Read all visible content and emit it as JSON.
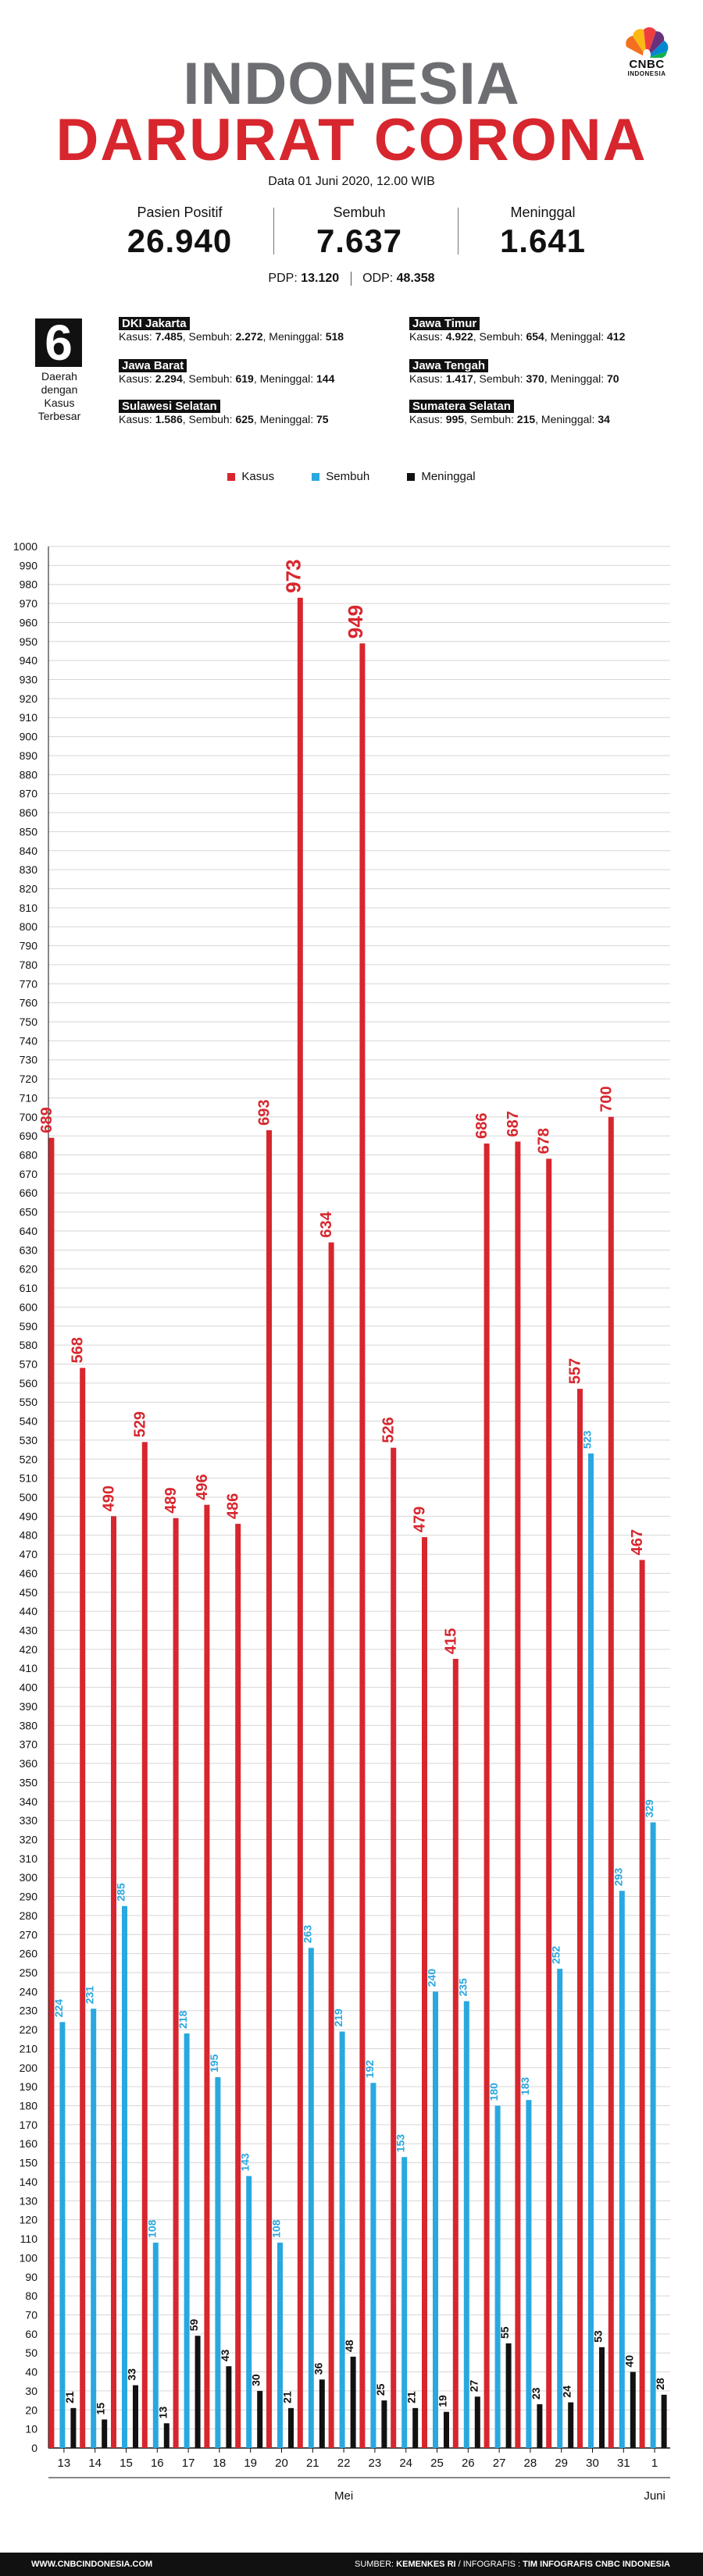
{
  "brand": {
    "name": "CNBC",
    "sub": "INDONESIA"
  },
  "title_line1": "INDONESIA",
  "title_line2": "DARURAT CORONA",
  "date": "Data 01 Juni 2020, 12.00 WIB",
  "stats": [
    {
      "label": "Pasien Positif",
      "value": "26.940"
    },
    {
      "label": "Sembuh",
      "value": "7.637"
    },
    {
      "label": "Meninggal",
      "value": "1.641"
    }
  ],
  "pdp": {
    "label": "PDP:",
    "value": "13.120"
  },
  "odp": {
    "label": "ODP:",
    "value": "48.358"
  },
  "regions_count": "6",
  "regions_caption": [
    "Daerah",
    "dengan",
    "Kasus",
    "Terbesar"
  ],
  "regions": [
    {
      "name": "DKI Jakarta",
      "kasus": "7.485",
      "sembuh": "2.272",
      "meninggal": "518"
    },
    {
      "name": "Jawa Timur",
      "kasus": "4.922",
      "sembuh": "654",
      "meninggal": "412"
    },
    {
      "name": "Jawa Barat",
      "kasus": "2.294",
      "sembuh": "619",
      "meninggal": "144"
    },
    {
      "name": "Jawa Tengah",
      "kasus": "1.417",
      "sembuh": "370",
      "meninggal": "70"
    },
    {
      "name": "Sulawesi Selatan",
      "kasus": "1.586",
      "sembuh": "625",
      "meninggal": "75"
    },
    {
      "name": "Sumatera Selatan",
      "kasus": "995",
      "sembuh": "215",
      "meninggal": "34"
    }
  ],
  "region_labels": {
    "kasus": "Kasus:",
    "sembuh": "Sembuh:",
    "meninggal": "Meninggal:"
  },
  "colors": {
    "kasus": "#d7262e",
    "sembuh": "#29a8e0",
    "meninggal": "#111111",
    "title_gray": "#6d6e71"
  },
  "chart_data": {
    "type": "bar",
    "categories": [
      "13",
      "14",
      "15",
      "16",
      "17",
      "18",
      "19",
      "20",
      "21",
      "22",
      "23",
      "24",
      "25",
      "26",
      "27",
      "28",
      "29",
      "30",
      "31",
      "1"
    ],
    "month_labels": [
      {
        "label": "Mei"
      },
      {
        "label": "Juni"
      }
    ],
    "series": [
      {
        "name": "Kasus",
        "values": [
          689,
          568,
          490,
          529,
          489,
          496,
          486,
          693,
          973,
          634,
          949,
          526,
          479,
          415,
          686,
          687,
          678,
          557,
          700,
          467
        ]
      },
      {
        "name": "Sembuh",
        "values": [
          224,
          231,
          285,
          108,
          218,
          195,
          143,
          108,
          263,
          219,
          192,
          153,
          240,
          235,
          180,
          183,
          252,
          523,
          293,
          329
        ]
      },
      {
        "name": "Meninggal",
        "values": [
          21,
          15,
          33,
          13,
          59,
          43,
          30,
          21,
          36,
          48,
          25,
          21,
          19,
          27,
          55,
          23,
          24,
          53,
          40,
          28
        ]
      }
    ],
    "ylim": [
      0,
      1000
    ],
    "ytick_step": 10,
    "grid": true,
    "legend": "top-center"
  },
  "footer": {
    "website": "WWW.CNBCINDONESIA.COM",
    "source_label": "SUMBER:",
    "source": "KEMENKES RI",
    "infographic_label": "/ INFOGRAFIS :",
    "infographic": "TIM INFOGRAFIS CNBC INDONESIA"
  }
}
